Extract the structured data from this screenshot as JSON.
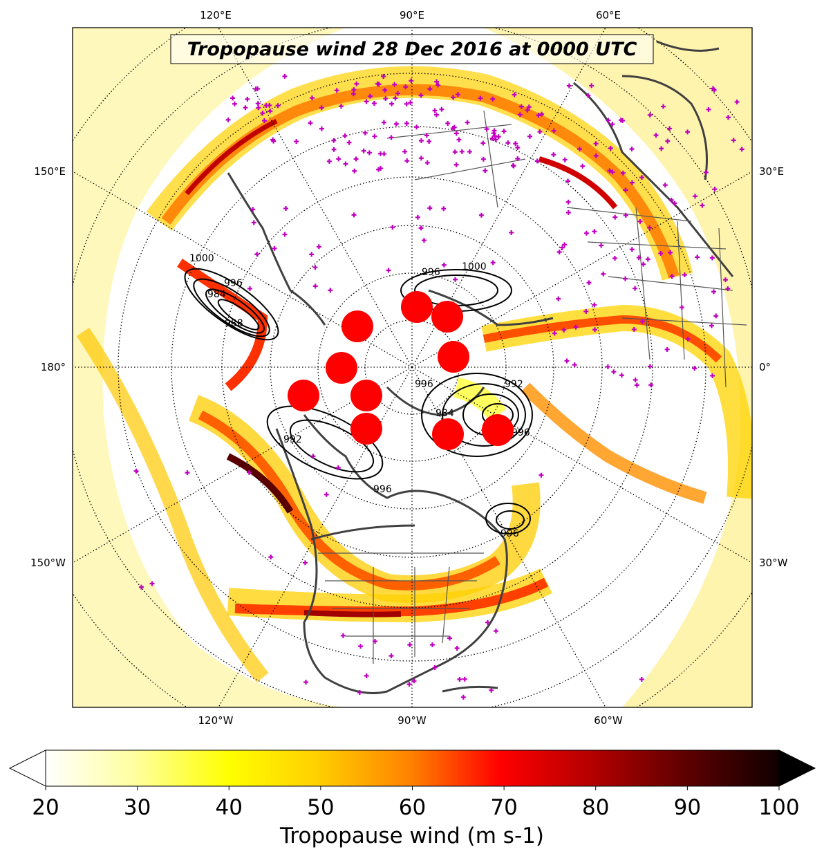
{
  "title": "Tropopause wind 28 Dec 2016 at 0000 UTC",
  "map": {
    "projection": "north-polar-stereographic",
    "top_longitude_labels": [
      "120°E",
      "90°E",
      "60°E"
    ],
    "bottom_longitude_labels": [
      "120°W",
      "90°W",
      "60°W"
    ],
    "left_labels": [
      "150°E",
      "180°",
      "150°W"
    ],
    "right_labels": [
      "30°E",
      "0°",
      "30°W"
    ],
    "coastline_color": "#404040",
    "graticule": "dotted",
    "station_marker_color": "#c000c0",
    "feature_marker_color": "#ff0000",
    "contour_color": "#000000"
  },
  "pressure_contours": {
    "labels": [
      "1000",
      "996",
      "984",
      "988",
      "1000",
      "996",
      "992",
      "996",
      "984",
      "992",
      "996",
      "996",
      "996"
    ]
  },
  "colorbar": {
    "label": "Tropopause wind (m s-1)",
    "ticks": [
      "20",
      "30",
      "40",
      "50",
      "60",
      "70",
      "80",
      "90",
      "100"
    ],
    "min": 20,
    "max": 100,
    "extend": "both",
    "colormap": "hot_r",
    "stops": [
      "#ffffff",
      "#ffff80",
      "#ffff00",
      "#ffd000",
      "#ff8000",
      "#ff0000",
      "#c00000",
      "#600000",
      "#100000"
    ]
  }
}
